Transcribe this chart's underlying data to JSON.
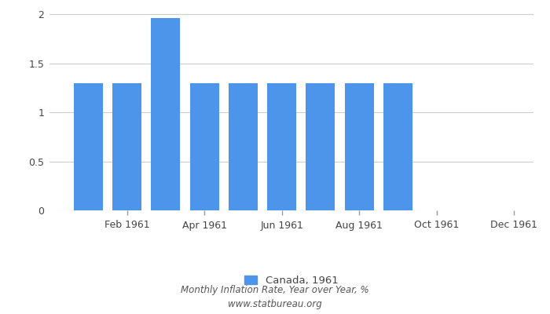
{
  "months_positions": [
    1,
    2,
    3,
    4,
    5,
    6,
    7,
    8,
    9
  ],
  "values": [
    1.3,
    1.3,
    1.96,
    1.3,
    1.3,
    1.3,
    1.3,
    1.3,
    1.3
  ],
  "bar_color": "#4d94eb",
  "ylim": [
    0,
    2.05
  ],
  "yticks": [
    0,
    0.5,
    1.0,
    1.5,
    2.0
  ],
  "ytick_labels": [
    "0",
    "0.5",
    "1",
    "1.5",
    "2"
  ],
  "xlim": [
    0.0,
    12.5
  ],
  "xtick_positions": [
    2,
    4,
    6,
    8,
    10,
    12
  ],
  "xtick_labels": [
    "Feb 1961",
    "Apr 1961",
    "Jun 1961",
    "Aug 1961",
    "Oct 1961",
    "Dec 1961"
  ],
  "bar_width": 0.75,
  "legend_label": "Canada, 1961",
  "subtitle1": "Monthly Inflation Rate, Year over Year, %",
  "subtitle2": "www.statbureau.org",
  "background_color": "#ffffff",
  "grid_color": "#cccccc",
  "tick_color": "#999999",
  "label_color": "#444444",
  "subtitle_color": "#555555"
}
